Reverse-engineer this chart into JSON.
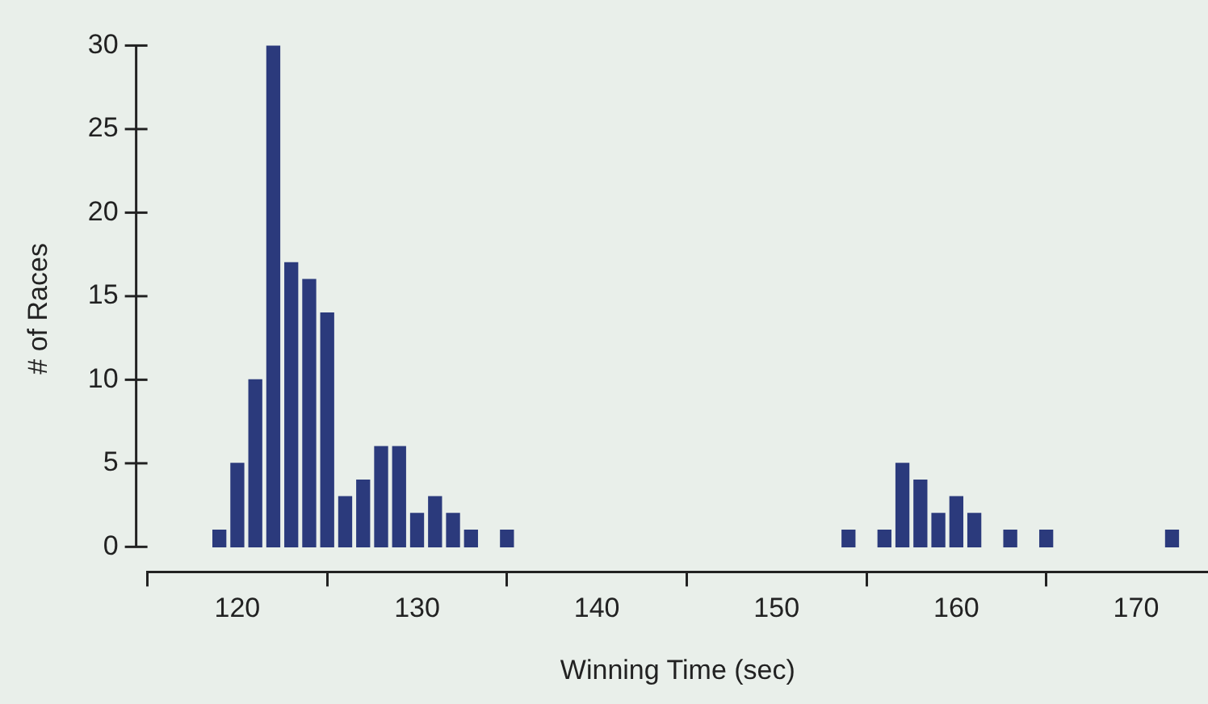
{
  "chart_data": {
    "type": "bar",
    "xlabel": "Winning Time (sec)",
    "ylabel": "# of Races",
    "x": [
      119,
      120,
      121,
      122,
      123,
      124,
      125,
      126,
      127,
      128,
      129,
      130,
      131,
      132,
      133,
      135,
      154,
      156,
      157,
      158,
      159,
      160,
      161,
      163,
      165,
      172
    ],
    "values": [
      1,
      5,
      10,
      30,
      17,
      16,
      14,
      3,
      4,
      6,
      6,
      2,
      3,
      2,
      1,
      1,
      1,
      1,
      5,
      4,
      2,
      3,
      2,
      1,
      1,
      1
    ],
    "color": "#2b3a7c",
    "xlim": [
      115,
      174
    ],
    "xticks": [
      120,
      130,
      140,
      150,
      160,
      170
    ],
    "ylim": [
      -1.5,
      30
    ],
    "yticks": [
      0,
      5,
      10,
      15,
      20,
      25,
      30
    ],
    "grid": false,
    "legend": false
  }
}
